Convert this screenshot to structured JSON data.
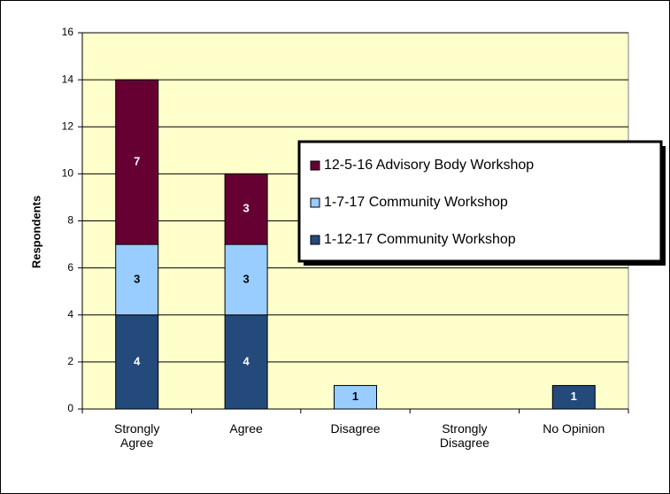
{
  "chart_data": {
    "type": "stacked_bar",
    "y_label": "Respondents",
    "categories": [
      "Strongly Agree",
      "Agree",
      "Disagree",
      "Strongly Disagree",
      "No Opinion"
    ],
    "series": [
      {
        "name": "1-12-17 Community Workshop",
        "color": "#244a7c",
        "label_color": "#ffffff",
        "values": [
          4,
          4,
          0,
          0,
          1
        ]
      },
      {
        "name": "1-7-17 Community Workshop",
        "color": "#99ccff",
        "label_color": "#000000",
        "values": [
          3,
          3,
          1,
          0,
          0
        ]
      },
      {
        "name": "12-5-16 Advisory Body Workshop",
        "color": "#660033",
        "label_color": "#ffffff",
        "values": [
          7,
          3,
          0,
          0,
          0
        ]
      }
    ],
    "ylim": [
      0,
      16
    ],
    "yticks": [
      0,
      2,
      4,
      6,
      8,
      10,
      12,
      14,
      16
    ],
    "grid": true,
    "background": "#ffffcc"
  }
}
